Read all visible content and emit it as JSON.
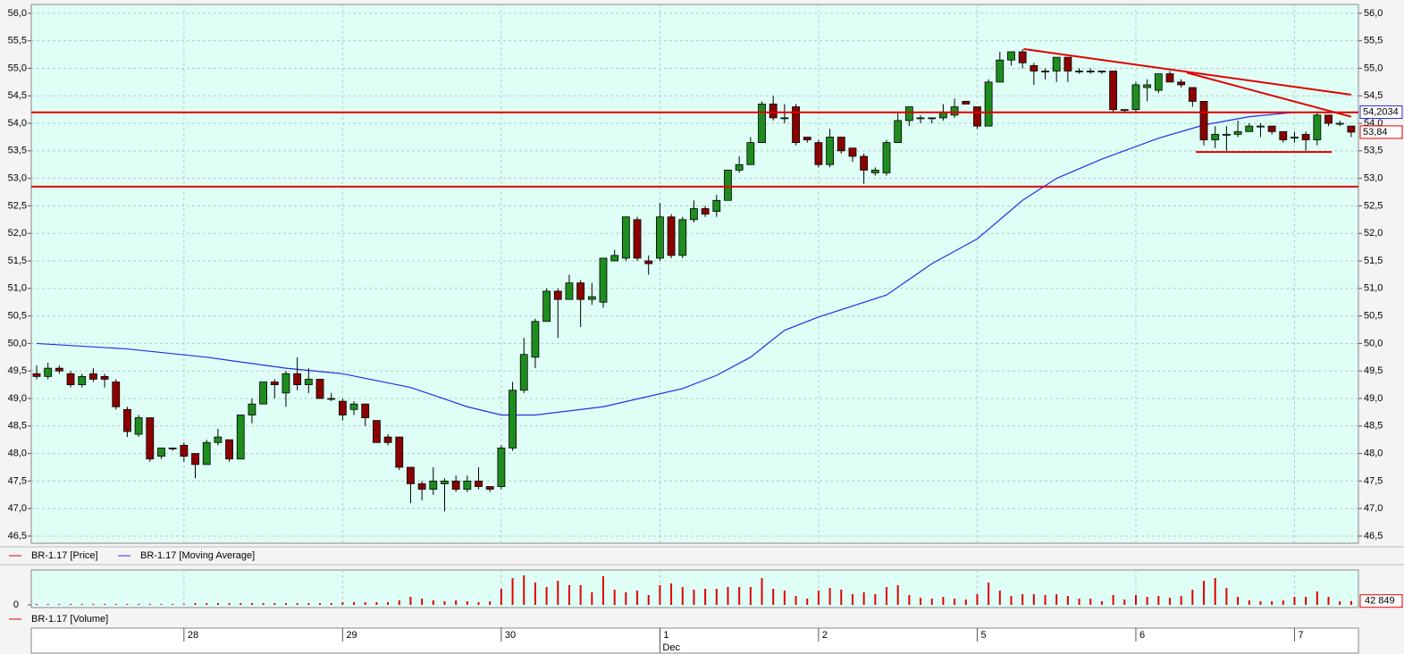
{
  "chart_data": [
    {
      "type": "candlestick",
      "name": "BR-1.17 [Price]",
      "up_color": "#1e8c1e",
      "down_color": "#8b0000",
      "categories": [
        null,
        null,
        null,
        null,
        null,
        null,
        null,
        null,
        null,
        null,
        null,
        null,
        null,
        "28",
        null,
        null,
        null,
        null,
        null,
        null,
        null,
        null,
        null,
        null,
        null,
        null,
        null,
        "29",
        null,
        null,
        null,
        null,
        null,
        null,
        null,
        null,
        null,
        null,
        null,
        null,
        null,
        "30",
        null,
        null,
        null,
        null,
        null,
        null,
        null,
        null,
        null,
        null,
        null,
        null,
        null,
        "1",
        null,
        null,
        null,
        null,
        null,
        null,
        null,
        null,
        null,
        null,
        null,
        null,
        null,
        "2",
        null,
        null,
        null,
        null,
        null,
        null,
        null,
        null,
        null,
        null,
        null,
        null,
        null,
        "5",
        null,
        null,
        null,
        null,
        null,
        null,
        null,
        null,
        null,
        null,
        null,
        null,
        null,
        "6",
        null,
        null,
        null,
        null,
        null,
        null,
        null,
        null,
        null,
        null,
        null,
        null,
        null,
        "7",
        null,
        null,
        null,
        null,
        null
      ],
      "month_categories": [
        null,
        null,
        null,
        null,
        null,
        null,
        null,
        null,
        null,
        null,
        null,
        null,
        null,
        null,
        null,
        null,
        null,
        null,
        null,
        null,
        null,
        null,
        null,
        null,
        null,
        null,
        null,
        null,
        null,
        null,
        null,
        null,
        null,
        null,
        null,
        null,
        null,
        null,
        null,
        null,
        null,
        null,
        null,
        null,
        null,
        null,
        null,
        null,
        null,
        null,
        null,
        null,
        null,
        null,
        null,
        "Dec",
        null,
        null,
        null,
        null,
        null,
        null,
        null,
        null,
        null,
        null,
        null,
        null,
        null,
        null,
        null,
        null,
        null,
        null,
        null,
        null,
        null,
        null,
        null,
        null,
        null,
        null,
        null,
        null,
        null,
        null,
        null,
        null,
        null,
        null,
        null,
        null,
        null,
        null,
        null,
        null,
        null,
        null,
        null,
        null,
        null,
        null,
        null,
        null,
        null,
        null,
        null,
        null,
        null,
        null,
        null,
        null,
        null,
        null,
        null,
        null,
        null
      ],
      "open": [
        49.45,
        49.4,
        49.55,
        49.45,
        49.25,
        49.45,
        49.4,
        49.3,
        48.8,
        48.35,
        48.65,
        47.95,
        48.1,
        48.15,
        48.0,
        47.8,
        48.2,
        48.25,
        47.9,
        48.7,
        48.9,
        49.3,
        49.1,
        49.45,
        49.25,
        49.35,
        49.0,
        48.95,
        48.8,
        48.9,
        48.6,
        48.3,
        48.3,
        47.75,
        47.45,
        47.35,
        47.45,
        47.5,
        47.35,
        47.5,
        47.4,
        47.4,
        48.1,
        49.15,
        49.75,
        50.4,
        50.95,
        50.8,
        51.1,
        50.8,
        50.75,
        51.5,
        51.55,
        52.25,
        51.5,
        51.55,
        52.3,
        51.6,
        52.25,
        52.45,
        52.4,
        52.6,
        53.15,
        53.25,
        53.65,
        54.35,
        54.1,
        54.3,
        53.75,
        53.65,
        53.25,
        53.75,
        53.55,
        53.4,
        53.1,
        53.1,
        53.65,
        54.05,
        54.1,
        54.1,
        54.1,
        54.15,
        54.4,
        54.3,
        53.95,
        54.75,
        55.15,
        55.3,
        55.05,
        54.95,
        54.95,
        55.2,
        54.95,
        54.95,
        54.95,
        54.95,
        54.25,
        54.25,
        54.65,
        54.6,
        54.9,
        54.75,
        54.65,
        54.4,
        53.7,
        53.8,
        53.8,
        53.85,
        53.95,
        53.95,
        53.85,
        53.75,
        53.8,
        53.7,
        54.15,
        54.0,
        53.95
      ],
      "high": [
        49.6,
        49.65,
        49.6,
        49.5,
        49.45,
        49.55,
        49.45,
        49.35,
        48.85,
        48.7,
        48.65,
        48.1,
        48.1,
        48.2,
        48.0,
        48.25,
        48.45,
        48.25,
        48.7,
        49.0,
        49.3,
        49.35,
        49.5,
        49.75,
        49.55,
        49.35,
        49.1,
        49.0,
        48.95,
        48.9,
        48.6,
        48.35,
        48.3,
        47.75,
        47.5,
        47.75,
        47.55,
        47.6,
        47.6,
        47.75,
        47.4,
        48.15,
        49.3,
        50.1,
        50.45,
        51.0,
        51.0,
        51.25,
        51.15,
        51.1,
        51.55,
        51.7,
        52.3,
        52.3,
        51.6,
        52.55,
        52.35,
        52.3,
        52.6,
        52.5,
        52.7,
        53.15,
        53.4,
        53.75,
        54.4,
        54.5,
        54.35,
        54.35,
        53.75,
        53.7,
        53.9,
        53.75,
        53.55,
        53.45,
        53.2,
        53.7,
        54.2,
        54.3,
        54.15,
        54.1,
        54.35,
        54.45,
        54.4,
        54.3,
        54.8,
        55.3,
        55.3,
        55.35,
        55.1,
        55.0,
        55.2,
        55.2,
        55.0,
        55.0,
        54.95,
        54.95,
        54.25,
        54.75,
        54.8,
        54.9,
        54.95,
        54.8,
        54.65,
        54.4,
        53.95,
        53.95,
        54.05,
        54.0,
        54.0,
        53.95,
        53.85,
        53.85,
        53.85,
        54.2,
        54.15,
        54.05,
        53.95
      ],
      "low": [
        49.35,
        49.35,
        49.45,
        49.2,
        49.2,
        49.3,
        49.2,
        48.8,
        48.3,
        48.3,
        47.85,
        47.9,
        48.05,
        47.85,
        47.55,
        47.8,
        48.15,
        47.85,
        47.9,
        48.55,
        48.9,
        49.0,
        48.85,
        49.15,
        49.1,
        49.0,
        48.95,
        48.6,
        48.7,
        48.5,
        48.2,
        48.15,
        47.7,
        47.1,
        47.15,
        47.25,
        46.95,
        47.3,
        47.3,
        47.35,
        47.3,
        47.35,
        48.05,
        49.1,
        49.55,
        50.4,
        50.1,
        50.8,
        50.3,
        50.7,
        50.65,
        51.5,
        51.5,
        51.5,
        51.25,
        51.5,
        51.55,
        51.55,
        52.2,
        52.3,
        52.3,
        52.6,
        53.1,
        53.25,
        53.65,
        54.05,
        54.0,
        53.6,
        53.65,
        53.2,
        53.2,
        53.45,
        53.3,
        52.9,
        53.05,
        53.05,
        53.65,
        53.95,
        54.0,
        54.0,
        54.05,
        54.1,
        54.35,
        53.9,
        53.95,
        54.75,
        55.05,
        55.0,
        54.7,
        54.8,
        54.75,
        54.75,
        54.9,
        54.9,
        54.9,
        54.2,
        54.2,
        54.2,
        54.4,
        54.55,
        54.75,
        54.65,
        54.3,
        53.6,
        53.55,
        53.5,
        53.75,
        53.85,
        53.75,
        53.8,
        53.65,
        53.65,
        53.5,
        53.6,
        53.95,
        53.95,
        53.75
      ],
      "close": [
        49.4,
        49.55,
        49.5,
        49.25,
        49.4,
        49.35,
        49.35,
        48.85,
        48.4,
        48.65,
        47.9,
        48.1,
        48.1,
        47.95,
        47.8,
        48.2,
        48.3,
        47.9,
        48.7,
        48.9,
        49.3,
        49.25,
        49.45,
        49.25,
        49.35,
        49.0,
        49.0,
        48.7,
        48.9,
        48.65,
        48.2,
        48.2,
        47.75,
        47.45,
        47.35,
        47.5,
        47.5,
        47.35,
        47.5,
        47.4,
        47.35,
        48.1,
        49.15,
        49.8,
        50.4,
        50.95,
        50.8,
        51.1,
        50.8,
        50.85,
        51.55,
        51.6,
        52.3,
        51.55,
        51.45,
        52.3,
        51.6,
        52.25,
        52.45,
        52.35,
        52.6,
        53.15,
        53.25,
        53.65,
        54.35,
        54.1,
        54.1,
        53.65,
        53.7,
        53.25,
        53.75,
        53.5,
        53.4,
        53.15,
        53.15,
        53.65,
        54.05,
        54.3,
        54.1,
        54.1,
        54.2,
        54.3,
        54.35,
        53.95,
        54.75,
        55.15,
        55.3,
        55.1,
        54.95,
        54.95,
        55.2,
        54.95,
        54.95,
        54.95,
        54.95,
        54.25,
        54.25,
        54.7,
        54.7,
        54.9,
        54.75,
        54.7,
        54.4,
        53.7,
        53.8,
        53.8,
        53.85,
        53.95,
        53.95,
        53.85,
        53.7,
        53.75,
        53.7,
        54.15,
        54.0,
        54.0,
        53.84
      ],
      "last_value": {
        "value": 53.84,
        "label": "53,84"
      },
      "ma": {
        "name": "BR-1.17 [Moving Average]",
        "color": "#2b2bea",
        "x": [
          0,
          8,
          15,
          22,
          27,
          33,
          38,
          41,
          44,
          50,
          57,
          60,
          63,
          66,
          69,
          75,
          79,
          83,
          87,
          90,
          94,
          99,
          103,
          107,
          111,
          113
        ],
        "values": [
          50.0,
          49.9,
          49.75,
          49.55,
          49.45,
          49.2,
          48.85,
          48.7,
          48.7,
          48.85,
          49.18,
          49.42,
          49.75,
          50.24,
          50.48,
          50.88,
          51.45,
          51.9,
          52.6,
          53.0,
          53.35,
          53.73,
          53.97,
          54.12,
          54.2,
          54.2034
        ],
        "last_value": {
          "value": 54.2034,
          "label": "54,2034"
        }
      },
      "annotation_color": "#e00000",
      "hlines": [
        54.2,
        52.85
      ],
      "trendlines": [
        {
          "x": [
            87.1,
            116
          ],
          "y": [
            55.35,
            54.52
          ]
        },
        {
          "x": [
            101.5,
            116
          ],
          "y": [
            54.92,
            54.12
          ]
        },
        {
          "x": [
            102.3,
            114.3
          ],
          "y": [
            53.48,
            53.48
          ]
        }
      ],
      "ylim": [
        46.37,
        56.16
      ],
      "yticks": [
        {
          "value": 46.5,
          "label": "46,5"
        },
        {
          "value": 47,
          "label": "47,0"
        },
        {
          "value": 47.5,
          "label": "47,5"
        },
        {
          "value": 48,
          "label": "48,0"
        },
        {
          "value": 48.5,
          "label": "48,5"
        },
        {
          "value": 49,
          "label": "49,0"
        },
        {
          "value": 49.5,
          "label": "49,5"
        },
        {
          "value": 50,
          "label": "50,0"
        },
        {
          "value": 50.5,
          "label": "50,5"
        },
        {
          "value": 51,
          "label": "51,0"
        },
        {
          "value": 51.5,
          "label": "51,5"
        },
        {
          "value": 52,
          "label": "52,0"
        },
        {
          "value": 52.5,
          "label": "52,5"
        },
        {
          "value": 53,
          "label": "53,0"
        },
        {
          "value": 53.5,
          "label": "53,5"
        },
        {
          "value": 54,
          "label": "54,0"
        },
        {
          "value": 54.5,
          "label": "54,5"
        },
        {
          "value": 55,
          "label": "55,0"
        },
        {
          "value": 55.5,
          "label": "55,5"
        },
        {
          "value": 56,
          "label": "56,0"
        }
      ],
      "grid": true
    },
    {
      "type": "bar",
      "name": "BR-1.17 [Volume]",
      "color": "#e00000",
      "values": [
        10000,
        10000,
        10000,
        10000,
        10000,
        10000,
        10000,
        10000,
        10000,
        10000,
        10000,
        10000,
        10000,
        10000,
        20000,
        20000,
        20000,
        20000,
        20000,
        20000,
        20000,
        20000,
        20000,
        20000,
        20000,
        20000,
        20000,
        30000,
        30000,
        30000,
        30000,
        30000,
        50000,
        90000,
        70000,
        50000,
        40000,
        50000,
        40000,
        30000,
        40000,
        180000,
        300000,
        330000,
        250000,
        200000,
        270000,
        220000,
        220000,
        140000,
        320000,
        170000,
        140000,
        160000,
        110000,
        220000,
        240000,
        200000,
        170000,
        180000,
        180000,
        200000,
        200000,
        200000,
        300000,
        180000,
        160000,
        100000,
        70000,
        160000,
        190000,
        170000,
        120000,
        140000,
        120000,
        200000,
        220000,
        110000,
        80000,
        70000,
        90000,
        70000,
        60000,
        120000,
        250000,
        160000,
        100000,
        120000,
        120000,
        110000,
        120000,
        100000,
        70000,
        70000,
        40000,
        110000,
        60000,
        110000,
        90000,
        100000,
        80000,
        100000,
        170000,
        270000,
        300000,
        190000,
        90000,
        50000,
        40000,
        40000,
        50000,
        90000,
        90000,
        150000,
        90000,
        40000,
        42849
      ],
      "last_value": {
        "value": 42849,
        "label": "42 849"
      },
      "ylim": [
        0,
        400000
      ],
      "yticks": [
        0
      ]
    }
  ]
}
